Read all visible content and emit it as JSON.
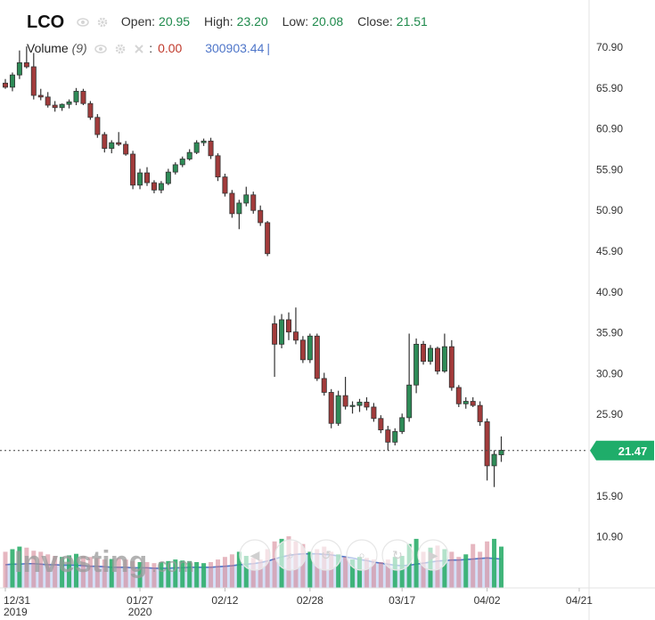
{
  "legend": {
    "symbol": "LCO",
    "open_label": "Open:",
    "open_value": "20.95",
    "high_label": "High:",
    "high_value": "23.20",
    "low_label": "Low:",
    "low_value": "20.08",
    "close_label": "Close:",
    "close_value": "21.51",
    "volume_label": "Volume",
    "volume_period": "(9)",
    "volume_colon": ":",
    "volume_value": "0.00",
    "volume_ma_value": "300903.44",
    "cursor": "|"
  },
  "watermark": {
    "text": "Investing",
    "suffix": ".com"
  },
  "chart_data": {
    "type": "candlestick",
    "y_ticks": [
      "70.90",
      "65.90",
      "60.90",
      "55.90",
      "50.90",
      "45.90",
      "40.90",
      "35.90",
      "30.90",
      "25.90",
      "15.90",
      "10.90"
    ],
    "ylim": [
      8,
      73
    ],
    "x_ticks": [
      {
        "label": "12/31",
        "sub": "2019",
        "index": 0
      },
      {
        "label": "01/27",
        "sub": "2020",
        "index": 19
      },
      {
        "label": "02/12",
        "sub": "",
        "index": 31
      },
      {
        "label": "02/28",
        "sub": "",
        "index": 43
      },
      {
        "label": "03/17",
        "sub": "",
        "index": 56
      },
      {
        "label": "04/02",
        "sub": "",
        "index": 68
      },
      {
        "label": "04/21",
        "sub": "",
        "index": 81
      }
    ],
    "last_price": "21.47",
    "last_price_color": "#1fad6a",
    "up_color": "#2e8b57",
    "down_color": "#a23b3b",
    "candles": [
      [
        66.5,
        67.0,
        65.8,
        66.0
      ],
      [
        66.0,
        67.8,
        65.5,
        67.5
      ],
      [
        67.5,
        70.5,
        67.0,
        69.0
      ],
      [
        69.0,
        71.0,
        68.3,
        68.5
      ],
      [
        68.5,
        70.2,
        64.5,
        65.0
      ],
      [
        65.0,
        65.8,
        64.4,
        64.8
      ],
      [
        64.8,
        65.4,
        63.5,
        63.8
      ],
      [
        63.8,
        64.3,
        63.0,
        63.5
      ],
      [
        63.5,
        64.0,
        63.1,
        63.9
      ],
      [
        63.9,
        64.5,
        63.4,
        64.2
      ],
      [
        64.2,
        65.9,
        63.8,
        65.5
      ],
      [
        65.5,
        65.8,
        63.8,
        64.0
      ],
      [
        64.0,
        64.3,
        62.0,
        62.3
      ],
      [
        62.3,
        62.7,
        59.8,
        60.2
      ],
      [
        60.2,
        60.5,
        58.0,
        58.5
      ],
      [
        58.5,
        59.5,
        57.9,
        59.2
      ],
      [
        59.2,
        60.5,
        58.8,
        59.0
      ],
      [
        59.0,
        59.4,
        57.6,
        57.8
      ],
      [
        57.8,
        58.2,
        53.5,
        54.0
      ],
      [
        54.0,
        56.0,
        53.5,
        55.5
      ],
      [
        55.5,
        56.2,
        53.9,
        54.3
      ],
      [
        54.3,
        54.6,
        53.0,
        53.4
      ],
      [
        53.4,
        54.5,
        53.0,
        54.2
      ],
      [
        54.2,
        56.0,
        54.0,
        55.6
      ],
      [
        55.6,
        56.8,
        55.3,
        56.5
      ],
      [
        56.5,
        57.5,
        56.2,
        57.2
      ],
      [
        57.2,
        58.4,
        57.0,
        58.0
      ],
      [
        58.0,
        59.5,
        57.8,
        59.2
      ],
      [
        59.2,
        59.7,
        58.8,
        59.4
      ],
      [
        59.4,
        59.8,
        57.2,
        57.6
      ],
      [
        57.6,
        57.9,
        54.5,
        55.0
      ],
      [
        55.0,
        55.4,
        52.6,
        53.0
      ],
      [
        53.0,
        53.4,
        50.0,
        50.5
      ],
      [
        50.5,
        52.2,
        48.6,
        51.8
      ],
      [
        51.8,
        53.8,
        51.4,
        52.8
      ],
      [
        52.8,
        53.2,
        50.5,
        50.9
      ],
      [
        50.9,
        51.5,
        49.0,
        49.4
      ],
      [
        49.4,
        49.6,
        45.3,
        45.6
      ],
      [
        37.0,
        38.0,
        30.5,
        34.5
      ],
      [
        34.5,
        38.2,
        34.0,
        37.5
      ],
      [
        37.5,
        38.4,
        35.0,
        36.0
      ],
      [
        36.0,
        39.0,
        34.5,
        35.0
      ],
      [
        35.0,
        35.5,
        32.2,
        32.6
      ],
      [
        32.6,
        35.8,
        32.2,
        35.5
      ],
      [
        35.5,
        35.8,
        30.0,
        30.3
      ],
      [
        30.3,
        31.0,
        28.2,
        28.6
      ],
      [
        28.6,
        29.0,
        24.2,
        24.8
      ],
      [
        24.8,
        28.8,
        24.5,
        28.2
      ],
      [
        28.2,
        30.5,
        26.5,
        26.9
      ],
      [
        26.9,
        27.5,
        26.0,
        27.0
      ],
      [
        27.0,
        27.8,
        26.2,
        27.4
      ],
      [
        27.4,
        28.0,
        26.4,
        26.8
      ],
      [
        26.8,
        27.3,
        25.0,
        25.4
      ],
      [
        25.4,
        25.8,
        23.6,
        24.0
      ],
      [
        24.0,
        24.5,
        21.5,
        22.5
      ],
      [
        22.5,
        24.2,
        22.1,
        23.8
      ],
      [
        23.8,
        26.0,
        23.5,
        25.5
      ],
      [
        25.5,
        35.8,
        25.0,
        29.5
      ],
      [
        29.5,
        35.2,
        28.5,
        34.5
      ],
      [
        34.5,
        34.9,
        32.0,
        32.4
      ],
      [
        32.4,
        34.4,
        32.0,
        34.0
      ],
      [
        34.0,
        34.2,
        30.8,
        31.2
      ],
      [
        31.2,
        35.8,
        31.0,
        34.2
      ],
      [
        34.2,
        35.0,
        28.8,
        29.2
      ],
      [
        29.2,
        29.5,
        26.8,
        27.2
      ],
      [
        27.2,
        28.0,
        26.6,
        27.5
      ],
      [
        27.5,
        28.0,
        26.8,
        27.0
      ],
      [
        27.0,
        27.5,
        24.5,
        25.0
      ],
      [
        25.0,
        25.4,
        17.8,
        19.6
      ],
      [
        19.6,
        21.5,
        17.0,
        21.0
      ],
      [
        20.95,
        23.2,
        20.08,
        21.51
      ]
    ],
    "volumes": [
      0.7,
      0.75,
      0.8,
      0.78,
      0.72,
      0.7,
      0.65,
      0.62,
      0.6,
      0.63,
      0.66,
      0.62,
      0.6,
      0.58,
      0.55,
      0.56,
      0.58,
      0.55,
      0.52,
      0.5,
      0.5,
      0.48,
      0.5,
      0.52,
      0.55,
      0.53,
      0.52,
      0.5,
      0.48,
      0.5,
      0.55,
      0.6,
      0.65,
      0.7,
      0.62,
      0.58,
      0.55,
      0.75,
      0.9,
      0.95,
      1.0,
      0.9,
      0.85,
      0.7,
      0.75,
      0.8,
      0.7,
      0.65,
      0.6,
      0.55,
      0.6,
      0.58,
      0.55,
      0.5,
      0.55,
      0.6,
      0.62,
      0.85,
      0.95,
      0.7,
      0.78,
      0.82,
      0.75,
      0.7,
      0.6,
      0.65,
      0.85,
      0.7,
      0.9,
      0.95,
      0.8
    ],
    "volume_ma": [
      0.45,
      0.46,
      0.46,
      0.47,
      0.47,
      0.46,
      0.45,
      0.45,
      0.44,
      0.44,
      0.44,
      0.43,
      0.42,
      0.42,
      0.41,
      0.4,
      0.4,
      0.4,
      0.39,
      0.39,
      0.39,
      0.38,
      0.38,
      0.38,
      0.39,
      0.39,
      0.4,
      0.4,
      0.4,
      0.4,
      0.41,
      0.42,
      0.43,
      0.45,
      0.46,
      0.47,
      0.49,
      0.52,
      0.56,
      0.6,
      0.63,
      0.65,
      0.66,
      0.66,
      0.66,
      0.65,
      0.64,
      0.62,
      0.6,
      0.58,
      0.55,
      0.53,
      0.5,
      0.48,
      0.46,
      0.44,
      0.43,
      0.44,
      0.46,
      0.48,
      0.5,
      0.52,
      0.53,
      0.54,
      0.54,
      0.55,
      0.56,
      0.57,
      0.58,
      0.57,
      0.56
    ]
  }
}
